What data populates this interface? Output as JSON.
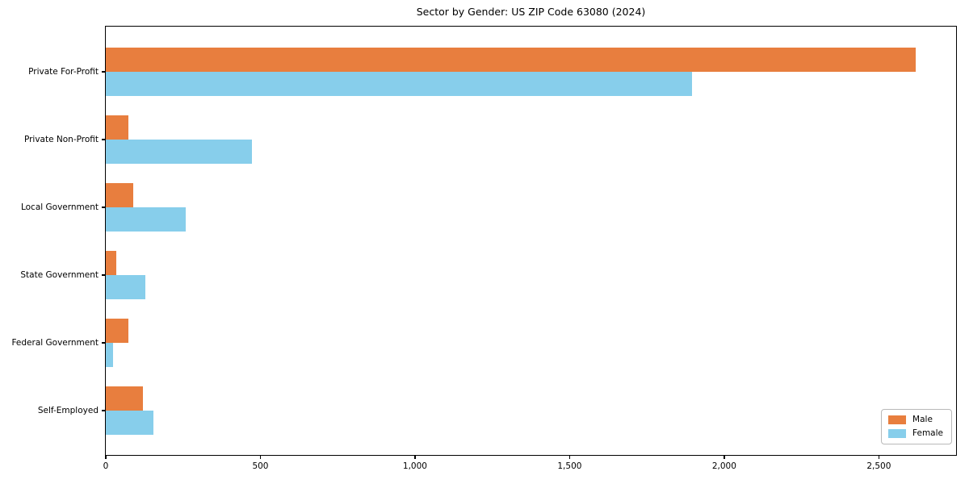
{
  "chart_data": {
    "type": "bar",
    "orientation": "horizontal",
    "title": "Sector by Gender: US ZIP Code 63080 (2024)",
    "categories": [
      "Private For-Profit",
      "Private Non-Profit",
      "Local Government",
      "State Government",
      "Federal Government",
      "Self-Employed"
    ],
    "series": [
      {
        "name": "Male",
        "color": "#e87e3e",
        "values": [
          2625,
          72,
          90,
          35,
          74,
          121
        ]
      },
      {
        "name": "Female",
        "color": "#87ceeb",
        "values": [
          1900,
          474,
          260,
          127,
          24,
          155
        ]
      }
    ],
    "xlabel": "",
    "ylabel": "",
    "xlim": [
      0,
      2755
    ],
    "x_ticks": [
      {
        "value": 0,
        "label": "0"
      },
      {
        "value": 500,
        "label": "500"
      },
      {
        "value": 1000,
        "label": "1,000"
      },
      {
        "value": 1500,
        "label": "1,500"
      },
      {
        "value": 2000,
        "label": "2,000"
      },
      {
        "value": 2500,
        "label": "2,500"
      }
    ],
    "grid": false,
    "legend_position": "lower right"
  }
}
